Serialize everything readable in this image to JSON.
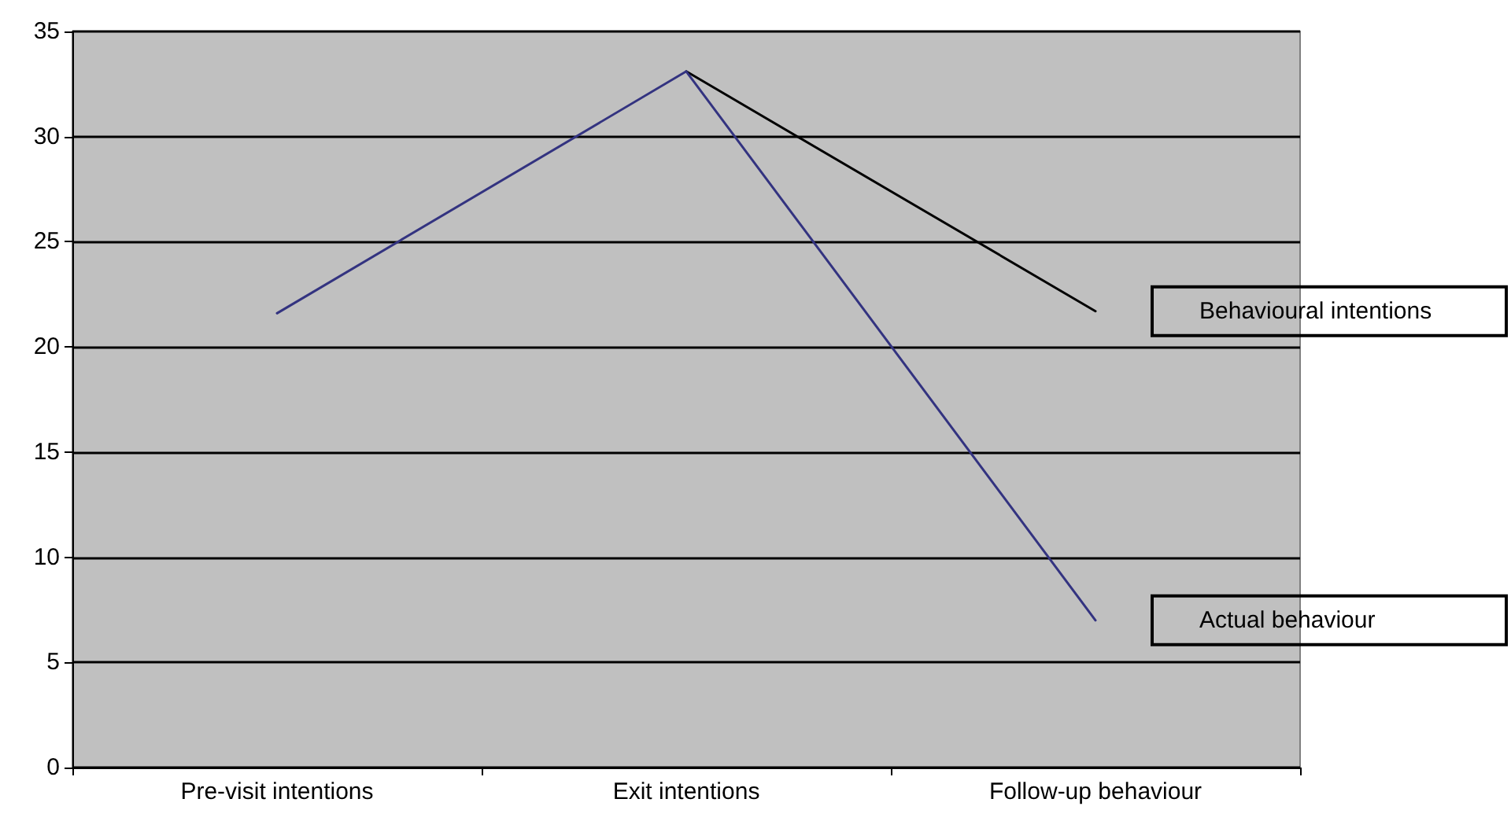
{
  "chart_data": {
    "type": "line",
    "categories": [
      "Pre-visit intentions",
      "Exit intentions",
      "Follow-up behaviour"
    ],
    "series": [
      {
        "name": "Behavioural intentions",
        "color": "#000000",
        "values": [
          null,
          33.1,
          21.7
        ]
      },
      {
        "name": "Actual behaviour",
        "color": "#333380",
        "values": [
          21.6,
          33.1,
          7.0
        ]
      }
    ],
    "ylim": [
      0,
      35
    ],
    "yticks": [
      0,
      5,
      10,
      15,
      20,
      25,
      30,
      35
    ],
    "grid": "y",
    "marker": "none",
    "line_style": "solid"
  }
}
